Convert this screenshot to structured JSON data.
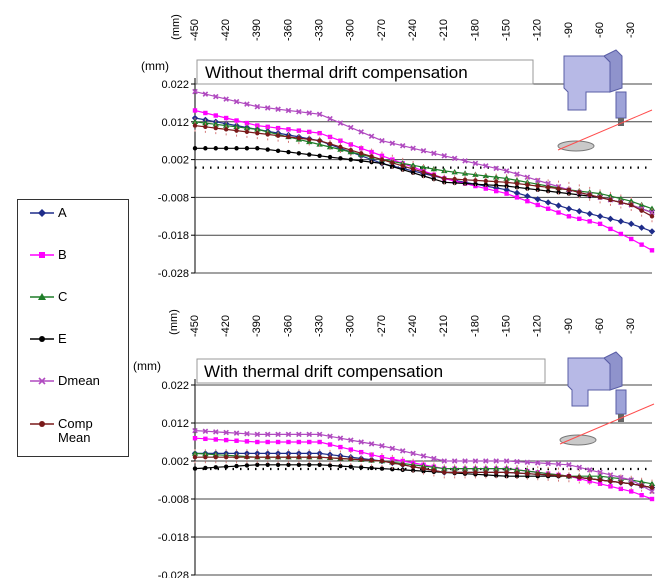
{
  "legend": [
    {
      "label": "A",
      "color": "#1f2d8a",
      "marker": "diamond"
    },
    {
      "label": "B",
      "color": "#ff00ff",
      "marker": "square"
    },
    {
      "label": "C",
      "color": "#1e7d28",
      "marker": "triangle"
    },
    {
      "label": "E",
      "color": "#000000",
      "marker": "circle"
    },
    {
      "label": "Dmean",
      "color": "#b04ac0",
      "marker": "cross"
    },
    {
      "label": "Comp Mean",
      "label_lines": [
        "Comp",
        "Mean"
      ],
      "color": "#7a1a1a",
      "marker": "circle"
    }
  ],
  "chart_data": [
    {
      "type": "line",
      "title": "Without thermal drift compensation",
      "ylabel": "(mm)",
      "xlabel": "(mm)",
      "x_ticks": [
        -450,
        -420,
        -390,
        -360,
        -330,
        -300,
        -270,
        -240,
        -210,
        -180,
        -150,
        -120,
        -90,
        -60,
        -30
      ],
      "x_tick_labels": [
        "-450",
        "-420",
        "-390",
        "-360",
        "-330",
        "-300",
        "-270",
        "-240",
        "-210",
        "-180",
        "-150",
        "-120",
        "-90",
        "-60",
        "-30"
      ],
      "y_ticks": [
        0.022,
        0.012,
        0.002,
        -0.008,
        -0.018,
        -0.028
      ],
      "y_tick_labels": [
        "0.022",
        "0.012",
        "0.002",
        "-0.008",
        "-0.018",
        "-0.028"
      ],
      "ylim": [
        -0.028,
        0.022
      ],
      "xlim": [
        -450,
        -10
      ],
      "grid": true,
      "series": [
        {
          "name": "A",
          "x": [
            -450,
            -390,
            -330,
            -270,
            -210,
            -150,
            -90,
            -60,
            -30,
            -10
          ],
          "y": [
            0.013,
            0.01,
            0.007,
            0.001,
            -0.003,
            -0.006,
            -0.011,
            -0.013,
            -0.015,
            -0.017
          ]
        },
        {
          "name": "B",
          "x": [
            -450,
            -390,
            -330,
            -270,
            -210,
            -150,
            -90,
            -60,
            -30,
            -10
          ],
          "y": [
            0.015,
            0.011,
            0.009,
            0.003,
            -0.003,
            -0.007,
            -0.013,
            -0.015,
            -0.019,
            -0.022
          ]
        },
        {
          "name": "C",
          "x": [
            -450,
            -390,
            -330,
            -270,
            -210,
            -150,
            -90,
            -60,
            -30,
            -10
          ],
          "y": [
            0.012,
            0.01,
            0.006,
            0.002,
            -0.001,
            -0.003,
            -0.006,
            -0.007,
            -0.009,
            -0.011
          ]
        },
        {
          "name": "E",
          "x": [
            -450,
            -390,
            -330,
            -270,
            -210,
            -150,
            -90,
            -60,
            -30,
            -10
          ],
          "y": [
            0.005,
            0.005,
            0.003,
            0.001,
            -0.004,
            -0.005,
            -0.007,
            -0.008,
            -0.01,
            -0.012
          ]
        },
        {
          "name": "Dmean",
          "x": [
            -450,
            -390,
            -330,
            -270,
            -210,
            -150,
            -90,
            -60,
            -30,
            -10
          ],
          "y": [
            0.02,
            0.016,
            0.014,
            0.007,
            0.003,
            -0.001,
            -0.006,
            -0.008,
            -0.01,
            -0.012
          ]
        },
        {
          "name": "Comp Mean",
          "x": [
            -450,
            -390,
            -330,
            -270,
            -210,
            -150,
            -90,
            -60,
            -30,
            -10
          ],
          "y": [
            0.011,
            0.009,
            0.007,
            0.002,
            -0.003,
            -0.004,
            -0.006,
            -0.008,
            -0.01,
            -0.013
          ]
        }
      ]
    },
    {
      "type": "line",
      "title": "With thermal drift compensation",
      "ylabel": "(mm)",
      "xlabel": "(mm)",
      "x_ticks": [
        -450,
        -420,
        -390,
        -360,
        -330,
        -300,
        -270,
        -240,
        -210,
        -180,
        -150,
        -120,
        -90,
        -60,
        -30
      ],
      "x_tick_labels": [
        "-450",
        "-420",
        "-390",
        "-360",
        "-330",
        "-300",
        "-270",
        "-240",
        "-210",
        "-180",
        "-150",
        "-120",
        "-90",
        "-60",
        "-30"
      ],
      "y_ticks": [
        0.022,
        0.012,
        0.002,
        -0.008,
        -0.018,
        -0.028
      ],
      "y_tick_labels": [
        "0.022",
        "0.012",
        "0.002",
        "-0.008",
        "-0.018",
        "-0.028"
      ],
      "ylim": [
        -0.028,
        0.022
      ],
      "xlim": [
        -450,
        -10
      ],
      "grid": true,
      "series": [
        {
          "name": "A",
          "x": [
            -450,
            -390,
            -330,
            -270,
            -210,
            -150,
            -90,
            -60,
            -30,
            -10
          ],
          "y": [
            0.004,
            0.004,
            0.004,
            0.002,
            -0.001,
            -0.001,
            -0.002,
            -0.003,
            -0.004,
            -0.005
          ]
        },
        {
          "name": "B",
          "x": [
            -450,
            -390,
            -330,
            -270,
            -210,
            -150,
            -90,
            -60,
            -30,
            -10
          ],
          "y": [
            0.008,
            0.007,
            0.007,
            0.003,
            0.0,
            0.0,
            -0.002,
            -0.004,
            -0.006,
            -0.008
          ]
        },
        {
          "name": "C",
          "x": [
            -450,
            -390,
            -330,
            -270,
            -210,
            -150,
            -90,
            -60,
            -30,
            -10
          ],
          "y": [
            0.004,
            0.003,
            0.003,
            0.002,
            0.0,
            0.0,
            -0.002,
            -0.002,
            -0.003,
            -0.004
          ]
        },
        {
          "name": "E",
          "x": [
            -450,
            -390,
            -330,
            -270,
            -210,
            -150,
            -90,
            -60,
            -30,
            -10
          ],
          "y": [
            0.0,
            0.001,
            0.001,
            0.0,
            -0.001,
            -0.002,
            -0.002,
            -0.003,
            -0.004,
            -0.005
          ]
        },
        {
          "name": "Dmean",
          "x": [
            -450,
            -390,
            -330,
            -270,
            -210,
            -150,
            -90,
            -60,
            -30,
            -10
          ],
          "y": [
            0.01,
            0.009,
            0.009,
            0.006,
            0.002,
            0.002,
            0.001,
            -0.001,
            -0.003,
            -0.006
          ]
        },
        {
          "name": "Comp Mean",
          "x": [
            -450,
            -390,
            -330,
            -270,
            -210,
            -150,
            -90,
            -60,
            -30,
            -10
          ],
          "y": [
            0.003,
            0.003,
            0.003,
            0.002,
            -0.001,
            -0.001,
            -0.002,
            -0.003,
            -0.004,
            -0.005
          ]
        }
      ]
    }
  ]
}
